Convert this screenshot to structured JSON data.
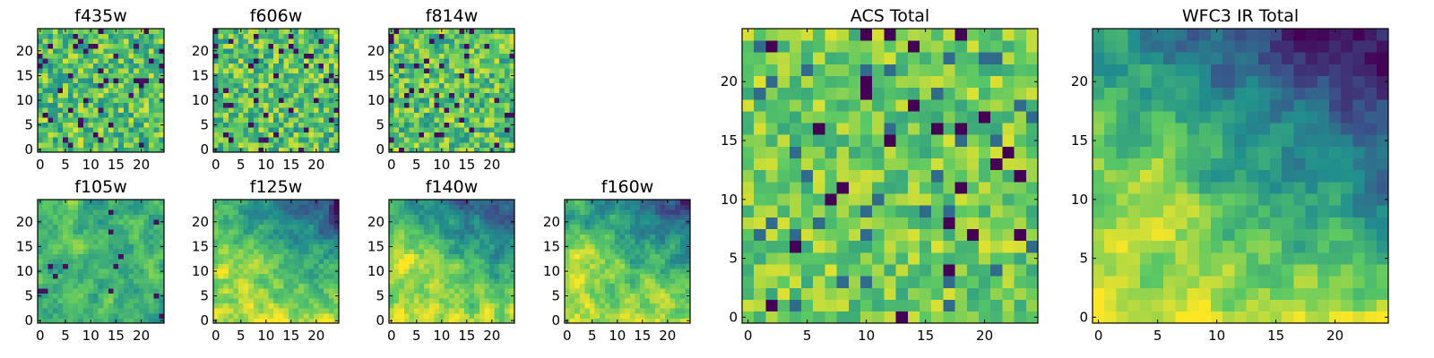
{
  "figure": {
    "width": 1600,
    "height": 400
  },
  "colormap": [
    "#440154",
    "#3b528b",
    "#21908d",
    "#5dc963",
    "#fde725"
  ],
  "chart_data": [
    {
      "id": "f435w",
      "type": "heatmap",
      "title": "f435w",
      "grid": [
        25,
        25
      ],
      "xlim": [
        -0.5,
        24.5
      ],
      "ylim": [
        -0.5,
        24.5
      ],
      "xticks": [
        0,
        5,
        10,
        15,
        20
      ],
      "yticks": [
        0,
        5,
        10,
        15,
        20
      ],
      "pattern": "noise",
      "seed": 11
    },
    {
      "id": "f606w",
      "type": "heatmap",
      "title": "f606w",
      "grid": [
        25,
        25
      ],
      "xlim": [
        -0.5,
        24.5
      ],
      "ylim": [
        -0.5,
        24.5
      ],
      "xticks": [
        0,
        5,
        10,
        15,
        20
      ],
      "yticks": [
        0,
        5,
        10,
        15,
        20
      ],
      "pattern": "noise",
      "seed": 23
    },
    {
      "id": "f814w",
      "type": "heatmap",
      "title": "f814w",
      "grid": [
        25,
        25
      ],
      "xlim": [
        -0.5,
        24.5
      ],
      "ylim": [
        -0.5,
        24.5
      ],
      "xticks": [
        0,
        5,
        10,
        15,
        20
      ],
      "yticks": [
        0,
        5,
        10,
        15,
        20
      ],
      "pattern": "noise",
      "seed": 37
    },
    {
      "id": "f105w",
      "type": "heatmap",
      "title": "f105w",
      "grid": [
        25,
        25
      ],
      "xlim": [
        -0.5,
        24.5
      ],
      "ylim": [
        -0.5,
        24.5
      ],
      "xticks": [
        0,
        5,
        10,
        15,
        20
      ],
      "yticks": [
        0,
        5,
        10,
        15,
        20
      ],
      "pattern": "smooth",
      "seed": 41
    },
    {
      "id": "f125w",
      "type": "heatmap",
      "title": "f125w",
      "grid": [
        25,
        25
      ],
      "xlim": [
        -0.5,
        24.5
      ],
      "ylim": [
        -0.5,
        24.5
      ],
      "xticks": [
        0,
        5,
        10,
        15,
        20
      ],
      "yticks": [
        0,
        5,
        10,
        15,
        20
      ],
      "pattern": "gradient",
      "seed": 53
    },
    {
      "id": "f140w",
      "type": "heatmap",
      "title": "f140w",
      "grid": [
        25,
        25
      ],
      "xlim": [
        -0.5,
        24.5
      ],
      "ylim": [
        -0.5,
        24.5
      ],
      "xticks": [
        0,
        5,
        10,
        15,
        20
      ],
      "yticks": [
        0,
        5,
        10,
        15,
        20
      ],
      "pattern": "gradient",
      "seed": 67
    },
    {
      "id": "f160w",
      "type": "heatmap",
      "title": "f160w",
      "grid": [
        25,
        25
      ],
      "xlim": [
        -0.5,
        24.5
      ],
      "ylim": [
        -0.5,
        24.5
      ],
      "xticks": [
        0,
        5,
        10,
        15,
        20
      ],
      "yticks": [
        0,
        5,
        10,
        15,
        20
      ],
      "pattern": "gradient",
      "seed": 79
    },
    {
      "id": "acs-total",
      "type": "heatmap",
      "title": "ACS Total",
      "grid": [
        25,
        25
      ],
      "xlim": [
        -0.5,
        24.5
      ],
      "ylim": [
        -0.5,
        24.5
      ],
      "xticks": [
        0,
        5,
        10,
        15,
        20
      ],
      "yticks": [
        0,
        5,
        10,
        15,
        20
      ],
      "pattern": "noise-bright",
      "seed": 97
    },
    {
      "id": "wfc3-ir-total",
      "type": "heatmap",
      "title": "WFC3 IR Total",
      "grid": [
        25,
        25
      ],
      "xlim": [
        -0.5,
        24.5
      ],
      "ylim": [
        -0.5,
        24.5
      ],
      "xticks": [
        0,
        5,
        10,
        15,
        20
      ],
      "yticks": [
        0,
        5,
        10,
        15,
        20
      ],
      "pattern": "gradient-strong",
      "seed": 113
    }
  ]
}
